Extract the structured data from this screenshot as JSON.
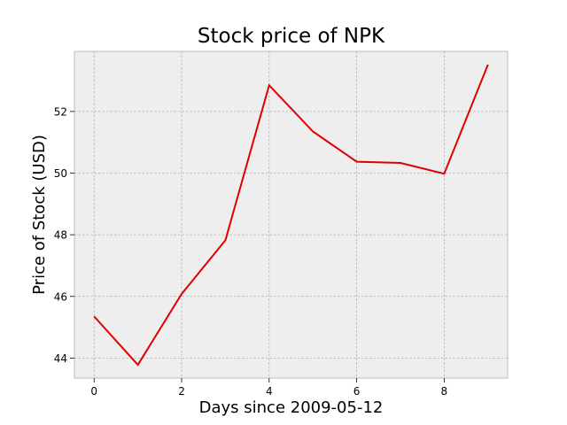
{
  "chart_data": {
    "type": "line",
    "title": "Stock price of NPK",
    "xlabel": "Days since 2009-05-12",
    "ylabel": "Price of Stock (USD)",
    "x": [
      0,
      1,
      2,
      3,
      4,
      5,
      6,
      7,
      8,
      9
    ],
    "series": [
      {
        "values": [
          45.35,
          43.78,
          46.08,
          47.82,
          52.85,
          51.35,
          50.37,
          50.33,
          49.98,
          53.52
        ],
        "color": "#e00000"
      }
    ],
    "xlim": [
      -0.45,
      9.45
    ],
    "ylim": [
      43.35,
      53.95
    ],
    "xticks": [
      0,
      2,
      4,
      6,
      8
    ],
    "yticks": [
      44,
      46,
      48,
      50,
      52
    ],
    "grid": true,
    "legend": false,
    "colors": {
      "plot_background": "#eeeeee",
      "grid": "#b0b0b0",
      "axes_edge": "#bcbcbc",
      "line": "#e00000"
    }
  }
}
